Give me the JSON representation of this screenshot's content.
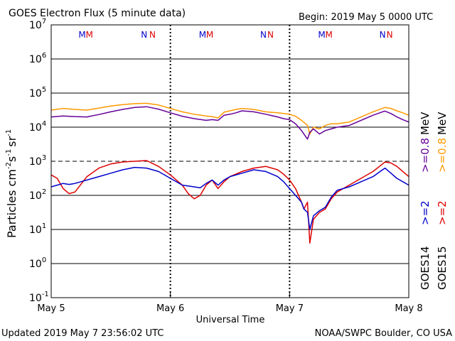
{
  "chart_data": {
    "type": "line",
    "title": "GOES Electron Flux (5 minute data)",
    "begin_label": "Begin: 2019 May 5 0000 UTC",
    "xlabel": "Universal Time",
    "ylabel_parts": {
      "base": "Particles cm",
      "e1": "-2",
      "s": "s",
      "e2": "-1",
      "sr": "sr",
      "e3": "-1"
    },
    "ylim_log10": [
      -1,
      7
    ],
    "yticks": [
      {
        "base": "10",
        "exp": "7",
        "log": 7
      },
      {
        "base": "10",
        "exp": "6",
        "log": 6
      },
      {
        "base": "10",
        "exp": "5",
        "log": 5
      },
      {
        "base": "10",
        "exp": "4",
        "log": 4
      },
      {
        "base": "10",
        "exp": "3",
        "log": 3
      },
      {
        "base": "10",
        "exp": "2",
        "log": 2
      },
      {
        "base": "10",
        "exp": "1",
        "log": 1
      },
      {
        "base": "10",
        "exp": "0",
        "log": 0
      },
      {
        "base": "10",
        "exp": "-1",
        "log": -1
      }
    ],
    "xlim_days": [
      0,
      3
    ],
    "xticks": [
      {
        "label": "May 5",
        "day": 0
      },
      {
        "label": "May 6",
        "day": 1
      },
      {
        "label": "May 7",
        "day": 2
      },
      {
        "label": "May 8",
        "day": 3
      }
    ],
    "threshold_log": 3,
    "solid_gridlines_log": [
      6,
      5,
      4,
      2,
      1,
      0
    ],
    "mn_markers": [
      {
        "text": "M",
        "color": "#0000cc",
        "day": 0.26
      },
      {
        "text": "M",
        "color": "#dd0000",
        "day": 0.32
      },
      {
        "text": "N",
        "color": "#0000cc",
        "day": 0.78
      },
      {
        "text": "N",
        "color": "#dd0000",
        "day": 0.85
      },
      {
        "text": "M",
        "color": "#0000cc",
        "day": 1.27
      },
      {
        "text": "M",
        "color": "#dd0000",
        "day": 1.33
      },
      {
        "text": "N",
        "color": "#0000cc",
        "day": 1.78
      },
      {
        "text": "N",
        "color": "#dd0000",
        "day": 1.84
      },
      {
        "text": "M",
        "color": "#0000cc",
        "day": 2.27
      },
      {
        "text": "M",
        "color": "#dd0000",
        "day": 2.33
      },
      {
        "text": "N",
        "color": "#0000cc",
        "day": 2.78
      },
      {
        "text": "N",
        "color": "#dd0000",
        "day": 2.84
      }
    ],
    "series": [
      {
        "name": ">=0.8 MeV",
        "satellite": "GOES15",
        "color": "#ff9900",
        "points": [
          [
            0,
            4.5
          ],
          [
            0.1,
            4.55
          ],
          [
            0.2,
            4.52
          ],
          [
            0.3,
            4.5
          ],
          [
            0.4,
            4.56
          ],
          [
            0.5,
            4.62
          ],
          [
            0.6,
            4.66
          ],
          [
            0.7,
            4.69
          ],
          [
            0.8,
            4.7
          ],
          [
            0.9,
            4.65
          ],
          [
            1.0,
            4.55
          ],
          [
            1.1,
            4.45
          ],
          [
            1.2,
            4.38
          ],
          [
            1.3,
            4.33
          ],
          [
            1.35,
            4.31
          ],
          [
            1.4,
            4.27
          ],
          [
            1.45,
            4.44
          ],
          [
            1.5,
            4.48
          ],
          [
            1.55,
            4.52
          ],
          [
            1.6,
            4.55
          ],
          [
            1.7,
            4.52
          ],
          [
            1.8,
            4.45
          ],
          [
            1.9,
            4.42
          ],
          [
            1.95,
            4.4
          ],
          [
            2.0,
            4.38
          ],
          [
            2.05,
            4.32
          ],
          [
            2.1,
            4.2
          ],
          [
            2.15,
            4.05
          ],
          [
            2.17,
            3.8
          ],
          [
            2.2,
            4.0
          ],
          [
            2.25,
            3.95
          ],
          [
            2.3,
            4.05
          ],
          [
            2.35,
            4.1
          ],
          [
            2.4,
            4.1
          ],
          [
            2.5,
            4.15
          ],
          [
            2.6,
            4.3
          ],
          [
            2.7,
            4.45
          ],
          [
            2.78,
            4.55
          ],
          [
            2.8,
            4.58
          ],
          [
            2.85,
            4.55
          ],
          [
            2.9,
            4.48
          ],
          [
            2.95,
            4.42
          ],
          [
            3.0,
            4.35
          ]
        ]
      },
      {
        "name": ">=0.8 MeV",
        "satellite": "GOES14",
        "color": "#660099",
        "points": [
          [
            0,
            4.3
          ],
          [
            0.1,
            4.33
          ],
          [
            0.2,
            4.31
          ],
          [
            0.3,
            4.3
          ],
          [
            0.4,
            4.37
          ],
          [
            0.5,
            4.45
          ],
          [
            0.6,
            4.52
          ],
          [
            0.7,
            4.58
          ],
          [
            0.8,
            4.6
          ],
          [
            0.9,
            4.53
          ],
          [
            1.0,
            4.42
          ],
          [
            1.1,
            4.32
          ],
          [
            1.2,
            4.25
          ],
          [
            1.3,
            4.2
          ],
          [
            1.35,
            4.22
          ],
          [
            1.4,
            4.2
          ],
          [
            1.45,
            4.35
          ],
          [
            1.5,
            4.38
          ],
          [
            1.55,
            4.42
          ],
          [
            1.6,
            4.48
          ],
          [
            1.7,
            4.45
          ],
          [
            1.8,
            4.38
          ],
          [
            1.9,
            4.3
          ],
          [
            1.95,
            4.25
          ],
          [
            2.0,
            4.22
          ],
          [
            2.05,
            4.1
          ],
          [
            2.1,
            3.9
          ],
          [
            2.15,
            3.65
          ],
          [
            2.17,
            3.85
          ],
          [
            2.2,
            3.95
          ],
          [
            2.25,
            3.8
          ],
          [
            2.3,
            3.9
          ],
          [
            2.35,
            3.95
          ],
          [
            2.4,
            4.0
          ],
          [
            2.5,
            4.05
          ],
          [
            2.6,
            4.2
          ],
          [
            2.7,
            4.35
          ],
          [
            2.78,
            4.45
          ],
          [
            2.8,
            4.47
          ],
          [
            2.85,
            4.4
          ],
          [
            2.9,
            4.3
          ],
          [
            2.95,
            4.22
          ],
          [
            3.0,
            4.15
          ]
        ]
      },
      {
        "name": ">=2 MeV",
        "satellite": "GOES15",
        "color": "#dd0000",
        "points": [
          [
            0,
            2.6
          ],
          [
            0.05,
            2.5
          ],
          [
            0.1,
            2.2
          ],
          [
            0.15,
            2.05
          ],
          [
            0.2,
            2.1
          ],
          [
            0.3,
            2.55
          ],
          [
            0.4,
            2.8
          ],
          [
            0.5,
            2.92
          ],
          [
            0.6,
            2.98
          ],
          [
            0.7,
            3.0
          ],
          [
            0.8,
            3.02
          ],
          [
            0.9,
            2.85
          ],
          [
            1.0,
            2.6
          ],
          [
            1.1,
            2.3
          ],
          [
            1.15,
            2.05
          ],
          [
            1.2,
            1.9
          ],
          [
            1.25,
            2.0
          ],
          [
            1.3,
            2.3
          ],
          [
            1.35,
            2.45
          ],
          [
            1.4,
            2.2
          ],
          [
            1.45,
            2.4
          ],
          [
            1.5,
            2.55
          ],
          [
            1.6,
            2.7
          ],
          [
            1.7,
            2.8
          ],
          [
            1.8,
            2.85
          ],
          [
            1.9,
            2.75
          ],
          [
            1.95,
            2.62
          ],
          [
            2.0,
            2.45
          ],
          [
            2.05,
            2.2
          ],
          [
            2.1,
            1.8
          ],
          [
            2.12,
            1.6
          ],
          [
            2.15,
            1.8
          ],
          [
            2.17,
            0.6
          ],
          [
            2.2,
            1.3
          ],
          [
            2.25,
            1.5
          ],
          [
            2.3,
            1.6
          ],
          [
            2.35,
            1.9
          ],
          [
            2.4,
            2.1
          ],
          [
            2.5,
            2.3
          ],
          [
            2.6,
            2.5
          ],
          [
            2.7,
            2.7
          ],
          [
            2.78,
            2.92
          ],
          [
            2.8,
            2.98
          ],
          [
            2.85,
            2.95
          ],
          [
            2.9,
            2.85
          ],
          [
            2.95,
            2.7
          ],
          [
            3.0,
            2.55
          ]
        ]
      },
      {
        "name": ">=2 MeV",
        "satellite": "GOES14",
        "color": "#0000cc",
        "points": [
          [
            0,
            2.25
          ],
          [
            0.05,
            2.3
          ],
          [
            0.1,
            2.35
          ],
          [
            0.15,
            2.32
          ],
          [
            0.2,
            2.35
          ],
          [
            0.3,
            2.45
          ],
          [
            0.4,
            2.55
          ],
          [
            0.5,
            2.65
          ],
          [
            0.6,
            2.75
          ],
          [
            0.7,
            2.82
          ],
          [
            0.8,
            2.8
          ],
          [
            0.9,
            2.7
          ],
          [
            1.0,
            2.5
          ],
          [
            1.1,
            2.3
          ],
          [
            1.2,
            2.25
          ],
          [
            1.25,
            2.22
          ],
          [
            1.3,
            2.35
          ],
          [
            1.35,
            2.45
          ],
          [
            1.4,
            2.3
          ],
          [
            1.45,
            2.45
          ],
          [
            1.5,
            2.55
          ],
          [
            1.6,
            2.65
          ],
          [
            1.7,
            2.75
          ],
          [
            1.8,
            2.7
          ],
          [
            1.9,
            2.55
          ],
          [
            1.95,
            2.4
          ],
          [
            2.0,
            2.2
          ],
          [
            2.05,
            2.0
          ],
          [
            2.1,
            1.8
          ],
          [
            2.12,
            1.6
          ],
          [
            2.15,
            1.5
          ],
          [
            2.17,
            1.0
          ],
          [
            2.2,
            1.4
          ],
          [
            2.25,
            1.55
          ],
          [
            2.3,
            1.65
          ],
          [
            2.35,
            1.95
          ],
          [
            2.4,
            2.15
          ],
          [
            2.5,
            2.25
          ],
          [
            2.6,
            2.4
          ],
          [
            2.7,
            2.55
          ],
          [
            2.78,
            2.75
          ],
          [
            2.8,
            2.8
          ],
          [
            2.85,
            2.65
          ],
          [
            2.9,
            2.5
          ],
          [
            2.95,
            2.4
          ],
          [
            3.0,
            2.3
          ]
        ]
      }
    ],
    "legend": {
      "sat_labels": [
        {
          "text": "GOES14",
          "color": "#000000"
        },
        {
          "text": "GOES15",
          "color": "#000000"
        }
      ],
      "energy_labels": [
        {
          "text": ">=2",
          "color": "#0000cc"
        },
        {
          "text": ">=2",
          "color": "#dd0000"
        },
        {
          "text": ">=0.8",
          "color": "#660099"
        },
        {
          "text": ">=0.8",
          "color": "#ff9900"
        }
      ],
      "unit": "MeV"
    },
    "grid": true
  },
  "footer": {
    "updated": "Updated 2019 May  7 23:56:02 UTC",
    "credit": "NOAA/SWPC Boulder, CO USA"
  }
}
